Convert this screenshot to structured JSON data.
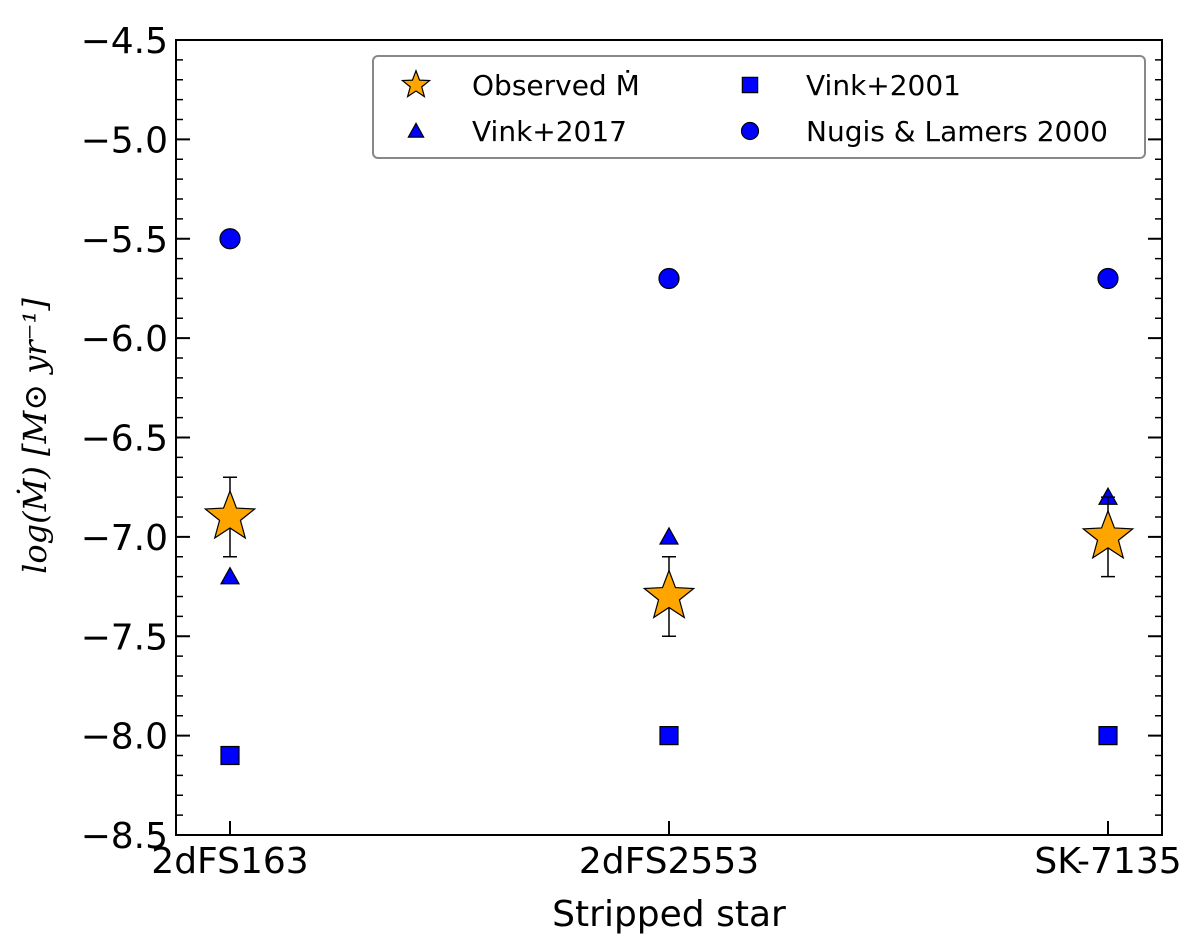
{
  "chart_data": {
    "type": "scatter",
    "xlabel": "Stripped star",
    "ylabel": "log(Ṁ) [M⊙ yr⁻¹]",
    "categories": [
      "2dFS163",
      "2dFS2553",
      "SK-7135"
    ],
    "ylim": [
      -8.5,
      -4.5
    ],
    "yticks": [
      "−4.5",
      "−5.0",
      "−5.5",
      "−6.0",
      "−6.5",
      "−7.0",
      "−7.5",
      "−8.0",
      "−8.5"
    ],
    "ytick_values": [
      -4.5,
      -5.0,
      -5.5,
      -6.0,
      -6.5,
      -7.0,
      -7.5,
      -8.0,
      -8.5
    ],
    "legend_position": "upper-right",
    "series": [
      {
        "name": "Observed Ṁ",
        "marker": "star",
        "color": "#FFA500",
        "values": [
          -6.9,
          -7.3,
          -7.0
        ],
        "errors": [
          0.2,
          0.2,
          0.2
        ]
      },
      {
        "name": "Vink+2017",
        "marker": "triangle",
        "color": "#0000FF",
        "values": [
          -7.2,
          -7.0,
          -6.8
        ]
      },
      {
        "name": "Vink+2001",
        "marker": "square",
        "color": "#0000FF",
        "values": [
          -8.1,
          -8.0,
          -8.0
        ]
      },
      {
        "name": "Nugis & Lamers 2000",
        "marker": "circle",
        "color": "#0000FF",
        "values": [
          -5.5,
          -5.7,
          -5.7
        ]
      }
    ]
  }
}
